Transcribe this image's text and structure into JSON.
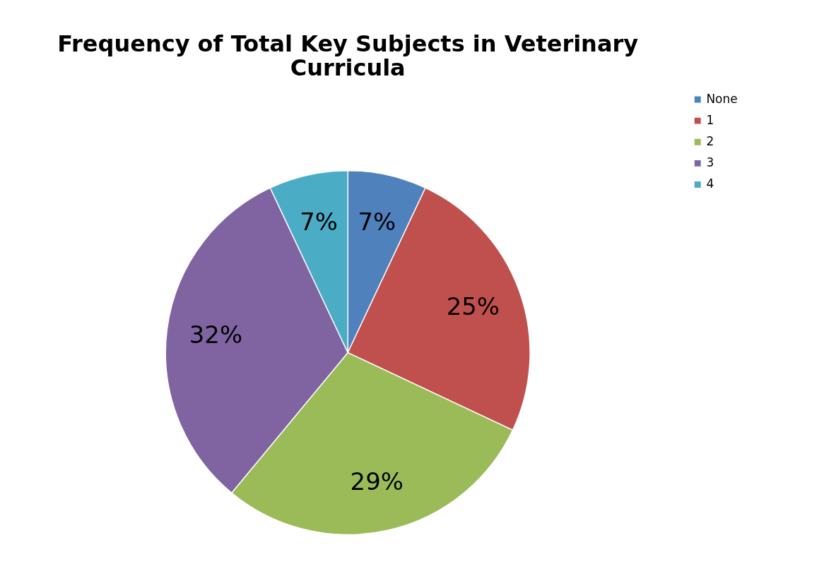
{
  "chart_data": {
    "type": "pie",
    "title": "Frequency of Total Key Subjects in Veterinary Curricula",
    "categories": [
      "None",
      "1",
      "2",
      "3",
      "4"
    ],
    "values": [
      7,
      25,
      29,
      32,
      7
    ],
    "colors": [
      "#4f81bd",
      "#c0504d",
      "#9bbb59",
      "#8064a2",
      "#4bacc6"
    ],
    "value_labels": [
      "7%",
      "25%",
      "29%",
      "32%",
      "7%"
    ],
    "legend": "right"
  }
}
